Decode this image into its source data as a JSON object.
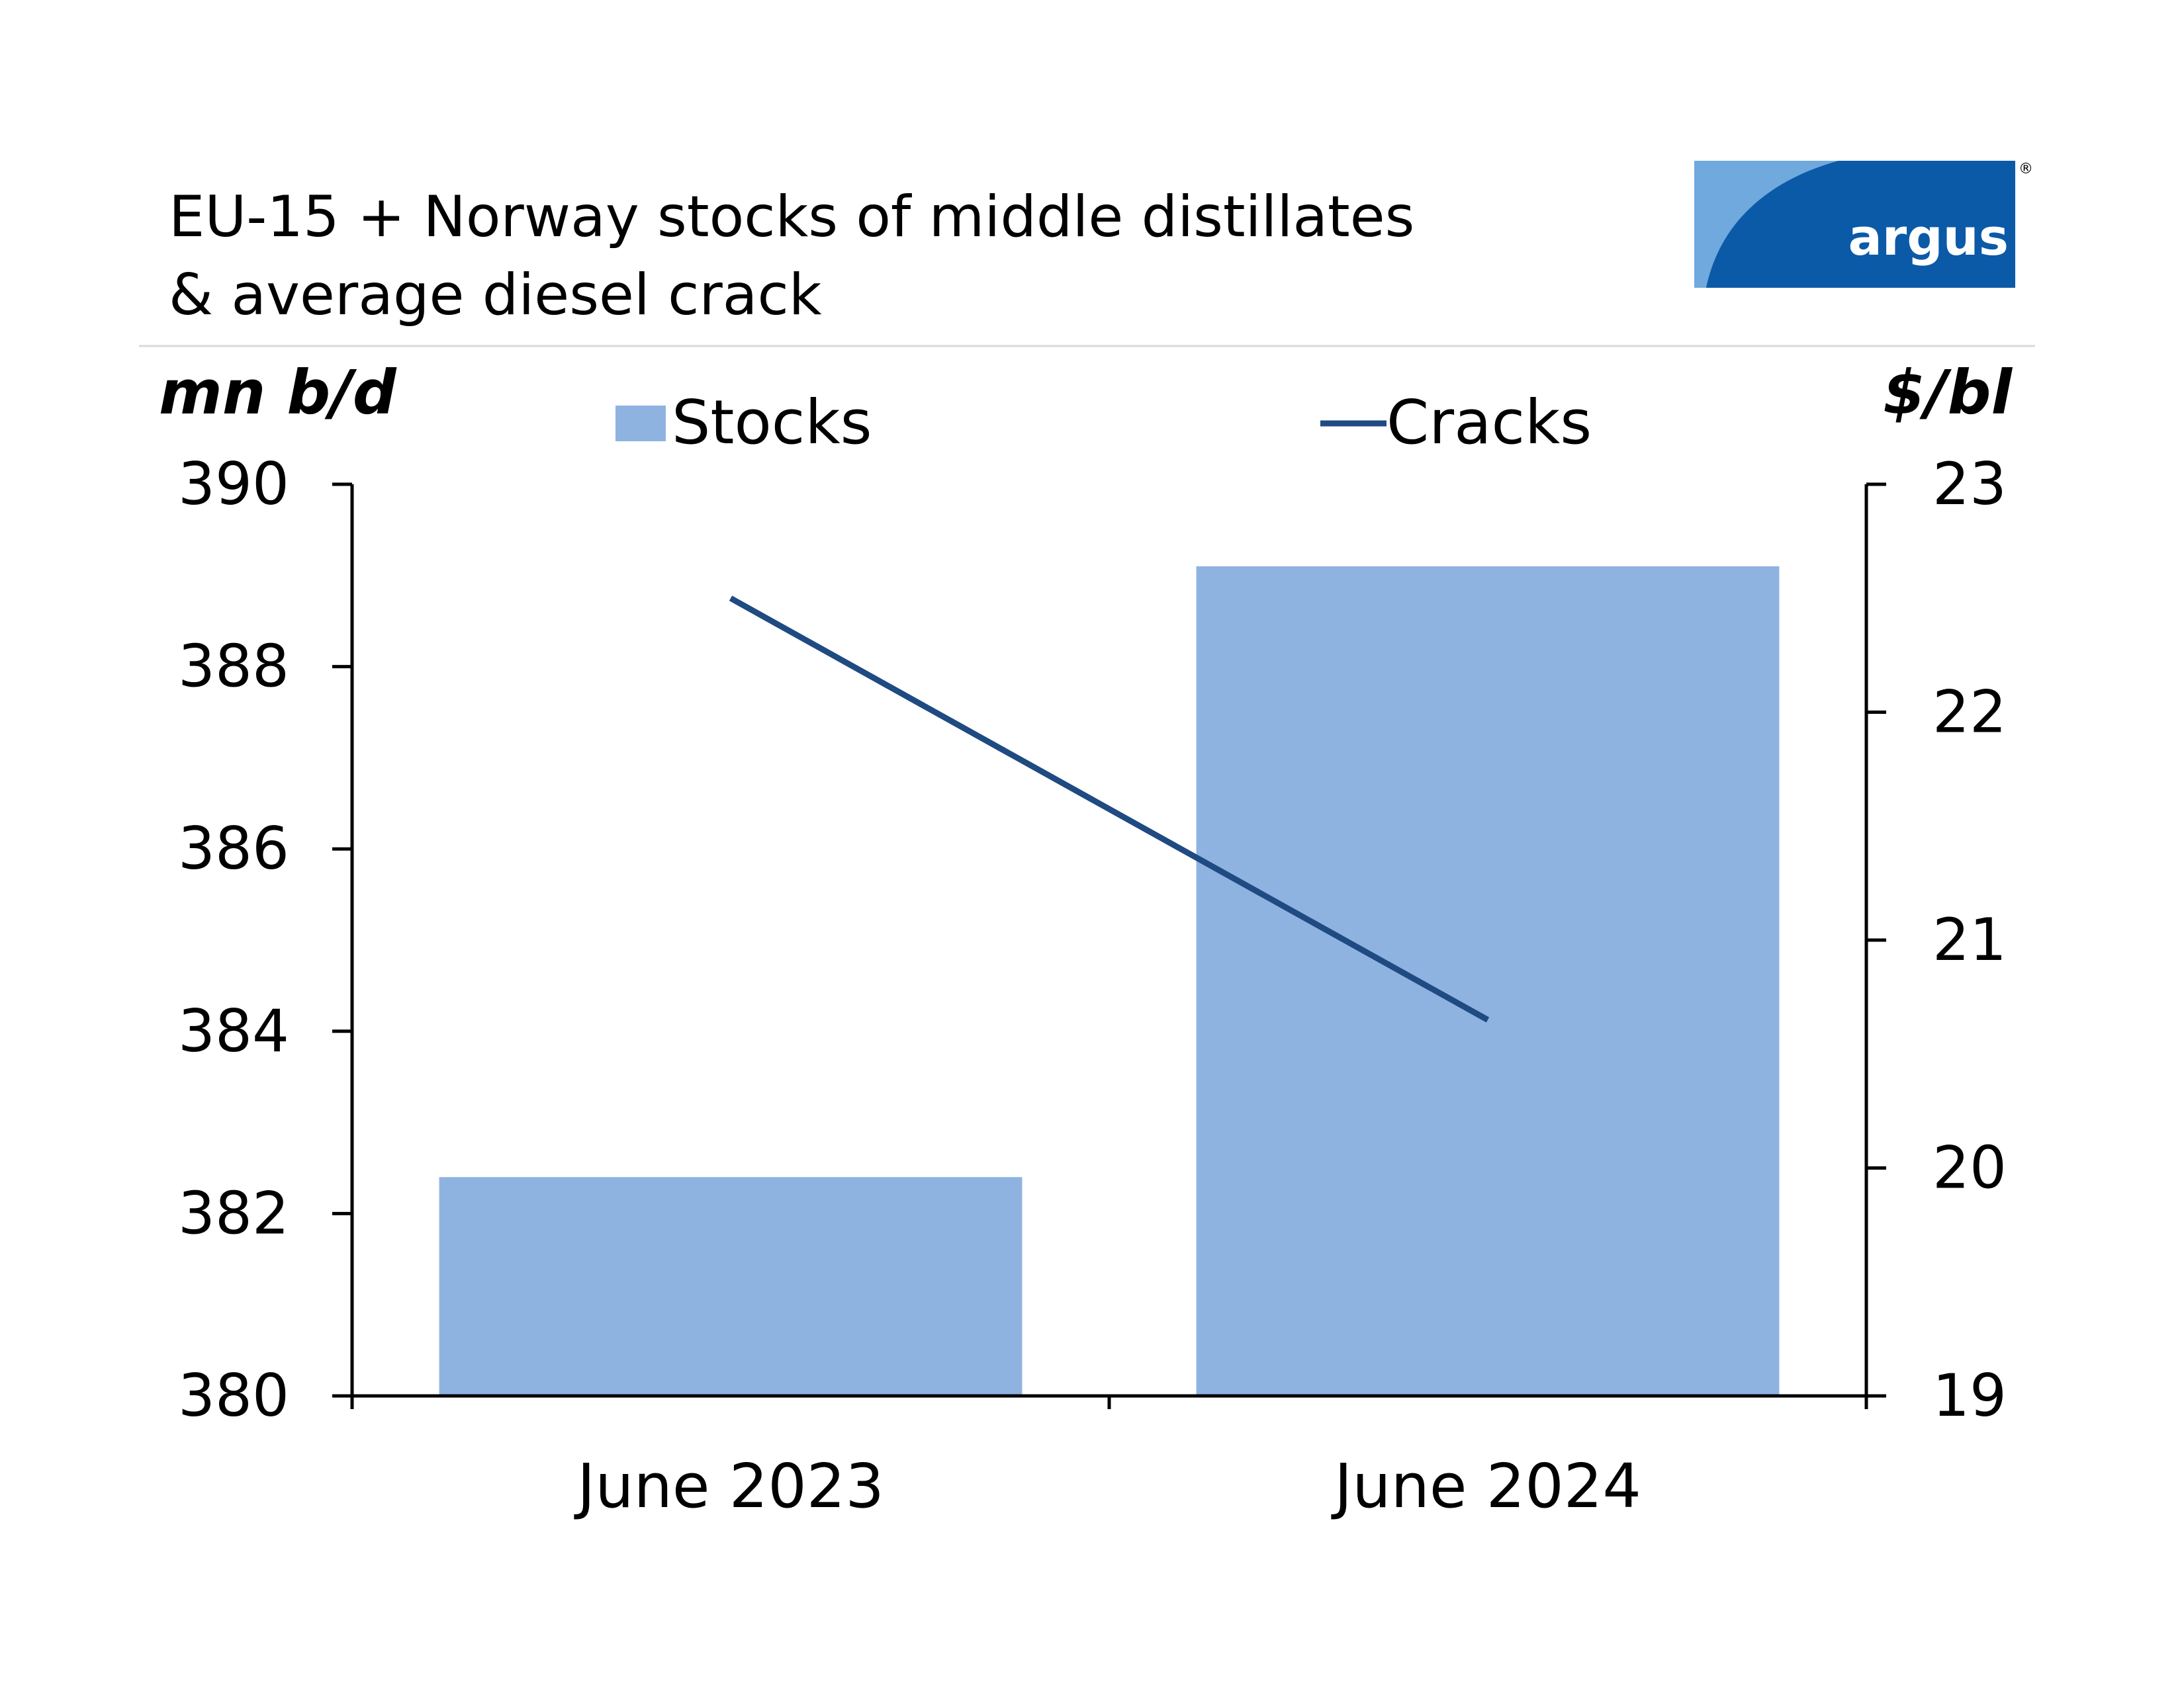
{
  "logo": {
    "text": "argus",
    "registered_mark": "®",
    "colors": {
      "blue": "#0b5aa8",
      "light": "#6fa9dd"
    }
  },
  "colors": {
    "bars": "#8fb3e0",
    "line": "#1f4a82",
    "axis": "#000000",
    "rule": "#d9d9d9"
  },
  "chart_data": {
    "type": "bar+line",
    "title": [
      "EU-15 + Norway stocks of middle distillates",
      "& average diesel crack"
    ],
    "categories": [
      "June 2023",
      "June 2024"
    ],
    "series": [
      {
        "name": "Stocks",
        "type": "bar",
        "axis": "left",
        "values": [
          382.4,
          389.1
        ]
      },
      {
        "name": "Cracks",
        "type": "line",
        "axis": "right",
        "values": [
          22.5,
          20.65
        ]
      }
    ],
    "y_left": {
      "label": "mn b/d",
      "min": 380,
      "max": 390,
      "ticks": [
        380,
        382,
        384,
        386,
        388,
        390
      ]
    },
    "y_right": {
      "label": "$/bl",
      "min": 19,
      "max": 23,
      "ticks": [
        19,
        20,
        21,
        22,
        23
      ]
    },
    "legend": {
      "position": "top",
      "items": [
        "Stocks",
        "Cracks"
      ]
    }
  }
}
